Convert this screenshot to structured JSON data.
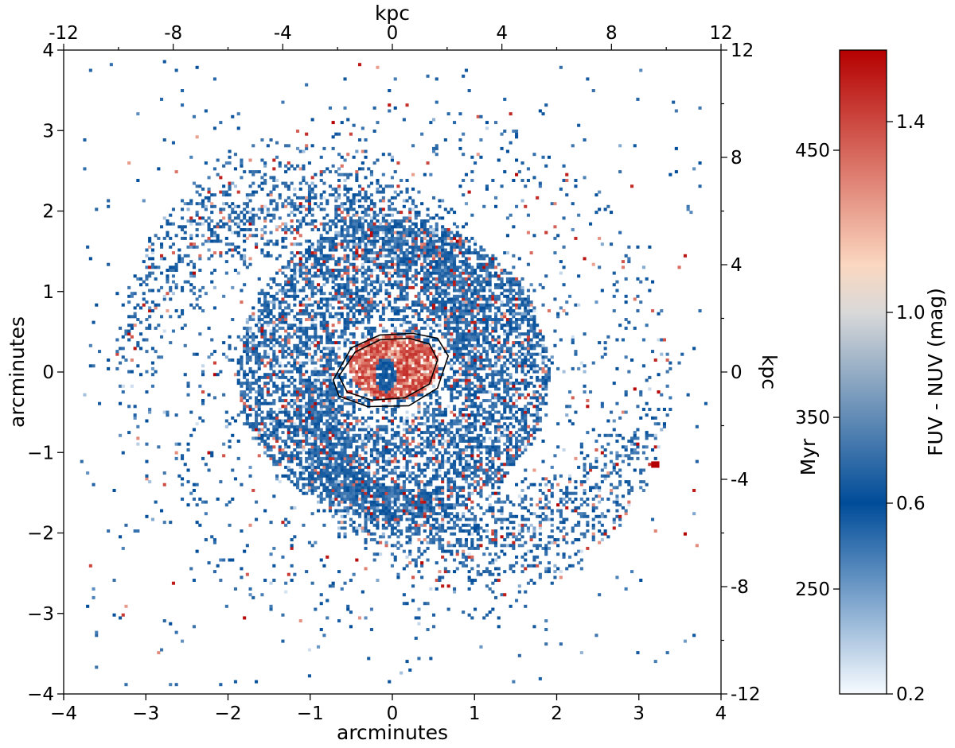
{
  "chart_data": {
    "type": "heatmap",
    "title": "",
    "description_source": "FUV - NUV colour map of a spiral galaxy",
    "axes": {
      "bottom": {
        "label": "arcminutes",
        "ticks": [
          "−4",
          "−3",
          "−2",
          "−1",
          "0",
          "1",
          "2",
          "3",
          "4"
        ],
        "range": [
          -4,
          4
        ]
      },
      "left": {
        "label": "arcminutes",
        "ticks": [
          "−4",
          "−3",
          "−2",
          "−1",
          "0",
          "1",
          "2",
          "3",
          "4"
        ],
        "range": [
          -4,
          4
        ]
      },
      "top": {
        "label": "kpc",
        "ticks": [
          "-12",
          "-8",
          "-4",
          "0",
          "4",
          "8",
          "12"
        ],
        "range": [
          -12,
          12
        ]
      },
      "right": {
        "label": "kpc",
        "ticks": [
          "-12",
          "-8",
          "-4",
          "0",
          "4",
          "8",
          "12"
        ],
        "range": [
          -12,
          12
        ]
      }
    },
    "colorbar": {
      "label": "FUV - NUV (mag)",
      "range": [
        0.2,
        1.55
      ],
      "ticks": [
        "0.2",
        "0.6",
        "1.0",
        "1.4"
      ],
      "tick_values": [
        0.2,
        0.6,
        1.0,
        1.4
      ],
      "secondary_label": "Myr",
      "secondary_ticks": [
        "250",
        "350",
        "450"
      ],
      "secondary_tick_colors": [
        0.42,
        0.78,
        1.34
      ],
      "colormap": [
        "#f7fbff",
        "#004c99",
        "#d9d9d9",
        "#fbd7c0",
        "#b40000"
      ],
      "colormap_stops": [
        0.2,
        0.6,
        1.0,
        1.1,
        1.55
      ]
    },
    "structure": {
      "bulge": {
        "center": [
          0.0,
          0.05
        ],
        "radius_arcmin": 0.55,
        "typical_color": 1.45
      },
      "nucleus_blue_spot": {
        "center": [
          -0.1,
          -0.05
        ],
        "typical_color": 0.55
      },
      "inner_ring_radius_arcmin": 1.1,
      "outer_arms_radius_arcmin": 2.8,
      "disk_typical_color": 0.6,
      "isolated_red_source": {
        "center": [
          3.2,
          -1.15
        ],
        "color": 1.55
      }
    },
    "contours": [
      {
        "name": "inner",
        "points": [
          [
            -0.65,
            -0.05
          ],
          [
            -0.45,
            0.25
          ],
          [
            -0.15,
            0.4
          ],
          [
            0.2,
            0.42
          ],
          [
            0.45,
            0.35
          ],
          [
            0.55,
            0.15
          ],
          [
            0.45,
            -0.15
          ],
          [
            0.15,
            -0.32
          ],
          [
            -0.25,
            -0.35
          ],
          [
            -0.55,
            -0.25
          ]
        ]
      },
      {
        "name": "outer",
        "points": [
          [
            -0.72,
            -0.1
          ],
          [
            -0.5,
            0.3
          ],
          [
            -0.15,
            0.46
          ],
          [
            0.25,
            0.48
          ],
          [
            0.55,
            0.42
          ],
          [
            0.68,
            0.2
          ],
          [
            0.55,
            -0.2
          ],
          [
            0.2,
            -0.42
          ],
          [
            -0.3,
            -0.43
          ],
          [
            -0.65,
            -0.3
          ]
        ]
      }
    ]
  }
}
